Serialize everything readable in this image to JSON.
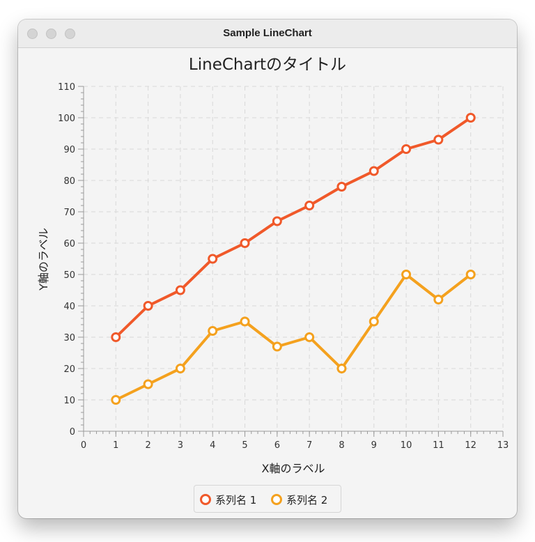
{
  "window": {
    "title": "Sample LineChart"
  },
  "chart_data": {
    "type": "line",
    "title": "LineChartのタイトル",
    "xlabel": "X軸のラベル",
    "ylabel": "Y軸のラベル",
    "xlim": [
      0,
      13
    ],
    "ylim": [
      0,
      110
    ],
    "x_ticks": [
      "0",
      "1",
      "2",
      "3",
      "4",
      "5",
      "6",
      "7",
      "8",
      "9",
      "10",
      "11",
      "12",
      "13"
    ],
    "y_ticks": [
      "0",
      "10",
      "20",
      "30",
      "40",
      "50",
      "60",
      "70",
      "80",
      "90",
      "100",
      "110"
    ],
    "grid": true,
    "legend_position": "bottom",
    "series": [
      {
        "name": "系列名 1",
        "color": "#f0592a",
        "x": [
          1,
          2,
          3,
          4,
          5,
          6,
          7,
          8,
          9,
          10,
          11,
          12
        ],
        "values": [
          30,
          40,
          45,
          55,
          60,
          67,
          72,
          78,
          83,
          90,
          93,
          100
        ]
      },
      {
        "name": "系列名 2",
        "color": "#f4a11e",
        "x": [
          1,
          2,
          3,
          4,
          5,
          6,
          7,
          8,
          9,
          10,
          11,
          12
        ],
        "values": [
          10,
          15,
          20,
          32,
          35,
          27,
          30,
          20,
          35,
          50,
          42,
          50
        ]
      }
    ]
  }
}
